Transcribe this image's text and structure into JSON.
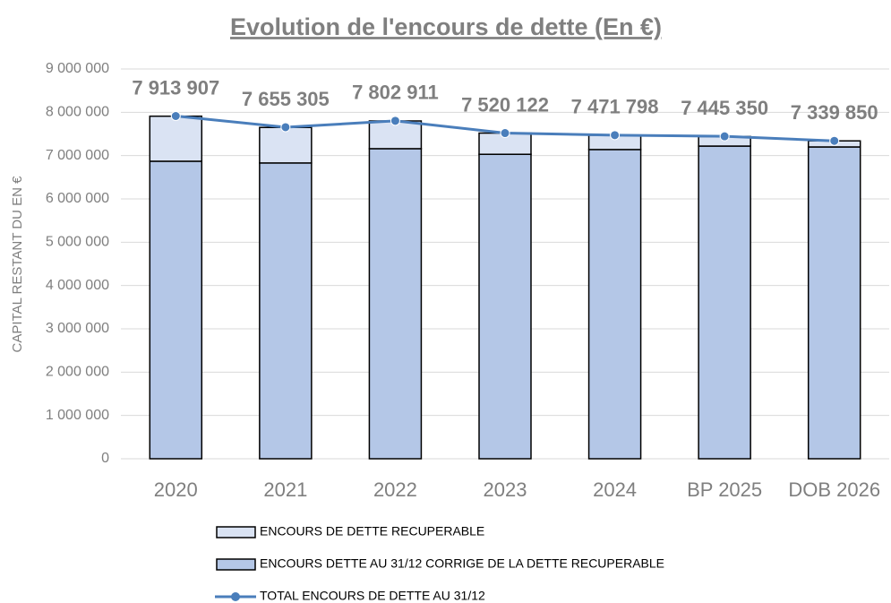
{
  "chart_data": {
    "type": "bar",
    "stacked": true,
    "title": "Evolution de l'encours de dette (En €)",
    "y_label": "CAPITAL RESTANT DU EN €",
    "categories": [
      "2020",
      "2021",
      "2022",
      "2023",
      "2024",
      "BP 2025",
      "DOB 2026"
    ],
    "series": [
      {
        "name": "ENCOURS DETTE AU 31/12 CORRIGE DE LA DETTE RECUPERABLE",
        "type": "bar",
        "color": "#b4c7e7",
        "values": [
          6870000,
          6830000,
          7160000,
          7030000,
          7140000,
          7220000,
          7200000
        ]
      },
      {
        "name": "ENCOURS DE DETTE RECUPERABLE",
        "type": "bar",
        "color": "#dae3f3",
        "values": [
          1040000,
          820000,
          640000,
          490000,
          330000,
          220000,
          140000
        ]
      },
      {
        "name": "TOTAL ENCOURS DE DETTE AU 31/12",
        "type": "line",
        "color": "#4a7ebb",
        "values": [
          7913907,
          7655305,
          7802911,
          7520122,
          7471798,
          7445350,
          7339850
        ],
        "value_labels": [
          "7 913 907",
          "7 655 305",
          "7 802 911",
          "7 520 122",
          "7 471 798",
          "7 445 350",
          "7 339 850"
        ]
      }
    ],
    "legend_order": [
      1,
      0,
      2
    ],
    "ylim": [
      0,
      9000000
    ],
    "yticks": [
      0,
      {
        "value": 1000000,
        "label": "1 000 000"
      },
      {
        "value": 2000000,
        "label": "2 000 000"
      },
      {
        "value": 3000000,
        "label": "3 000 000"
      },
      {
        "value": 4000000,
        "label": "4 000 000"
      },
      {
        "value": 5000000,
        "label": "5 000 000"
      },
      {
        "value": 6000000,
        "label": "6 000 000"
      },
      {
        "value": 7000000,
        "label": "7 000 000"
      },
      {
        "value": 8000000,
        "label": "8 000 000"
      },
      {
        "value": 9000000,
        "label": "9 000 000"
      }
    ],
    "grid": true,
    "legend": "bottom"
  }
}
